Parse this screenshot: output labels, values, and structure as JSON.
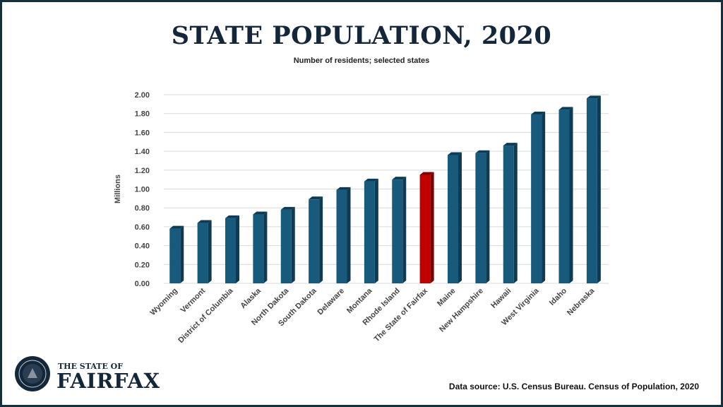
{
  "colors": {
    "bar": "#175a7c",
    "bar_side": "#0e3b52",
    "highlight": "#c00000",
    "highlight_side": "#7a0000",
    "frame": "#14303f",
    "grid": "#d9d9d9"
  },
  "chart_data": {
    "type": "bar",
    "title": "STATE POPULATION, 2020",
    "subtitle": "Number of residents; selected states",
    "ylabel": "Millions",
    "xlabel": "",
    "ylim": [
      0,
      2.0
    ],
    "yticks": [
      "0.00",
      "0.20",
      "0.40",
      "0.60",
      "0.80",
      "1.00",
      "1.20",
      "1.40",
      "1.60",
      "1.80",
      "2.00"
    ],
    "grid": true,
    "legend": "none",
    "categories": [
      "Wyoming",
      "Vermont",
      "District of Columbia",
      "Alaska",
      "North Dakota",
      "South Dakota",
      "Delaware",
      "Montana",
      "Rhode Island",
      "The State of Fairfax",
      "Maine",
      "New Hampshire",
      "Hawaii",
      "West Virginia",
      "Idaho",
      "Nebraska"
    ],
    "values": [
      0.58,
      0.64,
      0.69,
      0.73,
      0.78,
      0.89,
      0.99,
      1.08,
      1.1,
      1.15,
      1.36,
      1.38,
      1.46,
      1.79,
      1.84,
      1.96
    ],
    "highlight": "The State of Fairfax"
  },
  "source": "Data source: U.S. Census Bureau. Census of Population, 2020",
  "logo": {
    "small": "THE STATE OF",
    "big": "FAIRFAX",
    "seal_text": "THE STATE OF FAIRFAX"
  }
}
